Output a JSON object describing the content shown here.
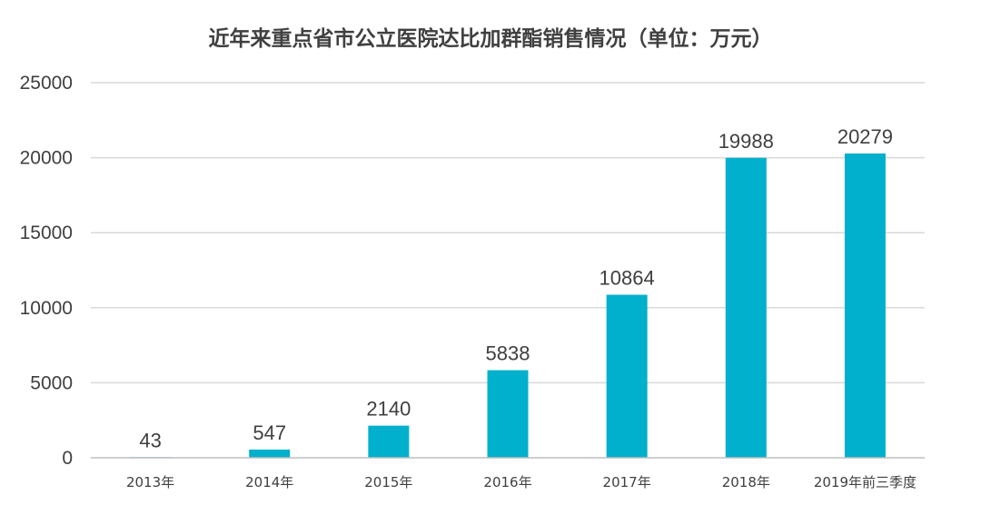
{
  "chart_data": {
    "type": "bar",
    "title": "近年来重点省市公立医院达比加群酯销售情况（单位：万元）",
    "categories": [
      "2013年",
      "2014年",
      "2015年",
      "2016年",
      "2017年",
      "2018年",
      "2019年前三季度"
    ],
    "values": [
      43,
      547,
      2140,
      5838,
      10864,
      19988,
      20279
    ],
    "ylim": [
      0,
      25000
    ],
    "yticks": [
      0,
      5000,
      10000,
      15000,
      20000,
      25000
    ],
    "grid": true,
    "legend": "none",
    "xlabel": "",
    "ylabel": "",
    "colors": {
      "bar": "#00B0CC",
      "text": "#404040",
      "grid": "#d9d9d9"
    }
  }
}
